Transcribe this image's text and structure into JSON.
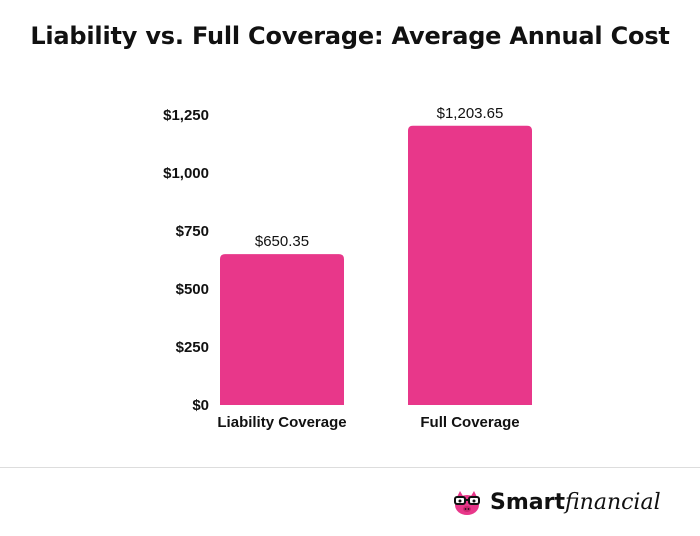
{
  "chart_data": {
    "type": "bar",
    "title": "Liability vs. Full Coverage: Average Annual Cost",
    "categories": [
      "Liability Coverage",
      "Full Coverage"
    ],
    "values": [
      650.35,
      1203.65
    ],
    "data_labels": [
      "$650.35",
      "$1,203.65"
    ],
    "y_ticks": [
      0,
      250,
      500,
      750,
      1000,
      1250
    ],
    "y_tick_labels": [
      "$0",
      "$250",
      "$500",
      "$750",
      "$1,000",
      "$1,250"
    ],
    "ylim": [
      0,
      1250
    ],
    "xlabel": "",
    "ylabel": "",
    "grid": false,
    "bar_color": "#e8378a"
  },
  "brand": {
    "name_bold": "Smart",
    "name_italic": "financial",
    "logo_icon": "piggy-bank-glasses-icon",
    "accent": "#e8378a"
  }
}
